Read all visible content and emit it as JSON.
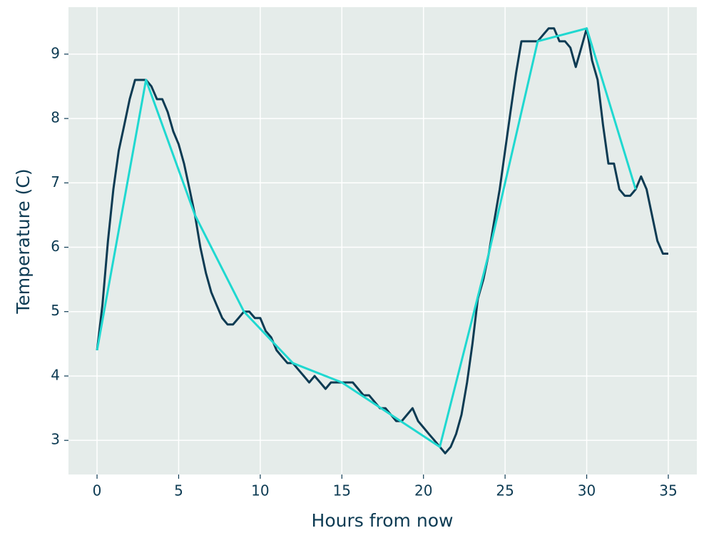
{
  "chart_data": {
    "type": "line",
    "xlabel": "Hours from now",
    "ylabel": "Temperature (C)",
    "xlim": [
      -1.75,
      36.75
    ],
    "ylim": [
      2.47,
      9.73
    ],
    "xticks": [
      0,
      5,
      10,
      15,
      20,
      25,
      30,
      35
    ],
    "yticks": [
      3,
      4,
      5,
      6,
      7,
      8,
      9
    ],
    "grid": true,
    "background": "#e5ecea",
    "text_color": "#0d3b53",
    "series": [
      {
        "color": "#0d3b53",
        "x": [
          0,
          0.33,
          0.67,
          1,
          1.33,
          1.67,
          2,
          2.33,
          2.67,
          3,
          3.33,
          3.67,
          4,
          4.33,
          4.67,
          5,
          5.33,
          5.67,
          6,
          6.33,
          6.67,
          7,
          7.33,
          7.67,
          8,
          8.33,
          8.67,
          9,
          9.33,
          9.67,
          10,
          10.33,
          10.67,
          11,
          11.33,
          11.67,
          12,
          12.33,
          12.67,
          13,
          13.33,
          13.67,
          14,
          14.33,
          14.67,
          15,
          15.33,
          15.67,
          16,
          16.33,
          16.67,
          17,
          17.33,
          17.67,
          18,
          18.33,
          18.67,
          19,
          19.33,
          19.67,
          20,
          20.33,
          20.67,
          21,
          21.33,
          21.67,
          22,
          22.33,
          22.67,
          23,
          23.33,
          23.67,
          24,
          24.33,
          24.67,
          25,
          25.33,
          25.67,
          26,
          26.33,
          26.67,
          27,
          27.33,
          27.67,
          28,
          28.33,
          28.67,
          29,
          29.33,
          29.67,
          30,
          30.33,
          30.67,
          31,
          31.33,
          31.67,
          32,
          32.33,
          32.67,
          33,
          33.33,
          33.67,
          34,
          34.33,
          34.67,
          35
        ],
        "values": [
          4.4,
          5.1,
          6.1,
          6.9,
          7.5,
          7.9,
          8.3,
          8.6,
          8.6,
          8.6,
          8.5,
          8.3,
          8.3,
          8.1,
          7.8,
          7.6,
          7.3,
          6.9,
          6.5,
          6.0,
          5.6,
          5.3,
          5.1,
          4.9,
          4.8,
          4.8,
          4.9,
          5.0,
          5.0,
          4.9,
          4.9,
          4.7,
          4.6,
          4.4,
          4.3,
          4.2,
          4.2,
          4.1,
          4.0,
          3.9,
          4.0,
          3.9,
          3.8,
          3.9,
          3.9,
          3.9,
          3.9,
          3.9,
          3.8,
          3.7,
          3.7,
          3.6,
          3.5,
          3.5,
          3.4,
          3.3,
          3.3,
          3.4,
          3.5,
          3.3,
          3.2,
          3.1,
          3.0,
          2.9,
          2.8,
          2.9,
          3.1,
          3.4,
          3.9,
          4.5,
          5.2,
          5.5,
          5.9,
          6.4,
          6.9,
          7.5,
          8.1,
          8.7,
          9.2,
          9.2,
          9.2,
          9.2,
          9.3,
          9.4,
          9.4,
          9.2,
          9.2,
          9.1,
          8.8,
          9.1,
          9.4,
          8.9,
          8.6,
          7.9,
          7.3,
          7.3,
          6.9,
          6.8,
          6.8,
          6.9,
          7.1,
          6.9,
          6.5,
          6.1,
          5.9,
          5.9
        ]
      },
      {
        "color": "#1fd8d0",
        "x": [
          0,
          3,
          6,
          9,
          12,
          15,
          18,
          21,
          24,
          27,
          30,
          33
        ],
        "values": [
          4.4,
          8.6,
          6.5,
          5.0,
          4.2,
          3.9,
          3.4,
          2.9,
          5.9,
          9.2,
          9.4,
          6.9
        ]
      }
    ]
  }
}
